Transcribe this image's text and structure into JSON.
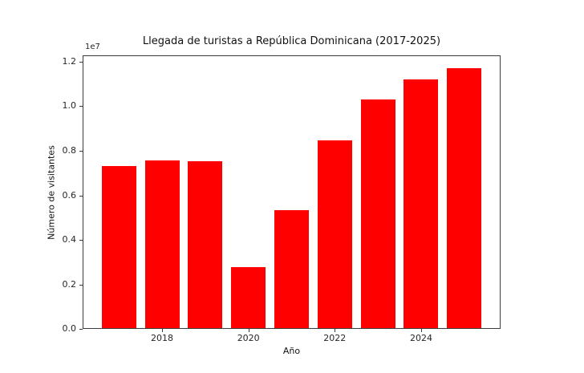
{
  "chart_data": {
    "type": "bar",
    "title": "Llegada de turistas a República Dominicana (2017-2025)",
    "xlabel": "Año",
    "ylabel": "Número de visitantes",
    "y_offset_label": "1e7",
    "categories": [
      2017,
      2018,
      2019,
      2020,
      2021,
      2022,
      2023,
      2024,
      2025
    ],
    "values": [
      7300000,
      7550000,
      7530000,
      2780000,
      5330000,
      8470000,
      10300000,
      11200000,
      11700000
    ],
    "bar_color": "#ff0000",
    "bar_width_years": 0.8,
    "xlim": [
      2016.16,
      2025.84
    ],
    "ylim": [
      0,
      12285000
    ],
    "x_ticks": [
      2018,
      2020,
      2022,
      2024
    ],
    "x_tick_labels": [
      "2018",
      "2020",
      "2022",
      "2024"
    ],
    "y_ticks": [
      0,
      2000000,
      4000000,
      6000000,
      8000000,
      10000000,
      12000000
    ],
    "y_tick_labels": [
      "0.0",
      "0.2",
      "0.4",
      "0.6",
      "0.8",
      "1.0",
      "1.2"
    ],
    "grid": false,
    "legend": "none",
    "plot_background": "#ffffff"
  }
}
